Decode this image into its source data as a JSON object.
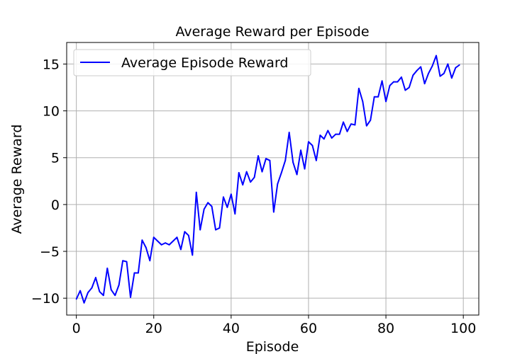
{
  "chart_data": {
    "type": "line",
    "title": "Average Reward per Episode",
    "xlabel": "Episode",
    "ylabel": "Average Reward",
    "xlim": [
      -2.5,
      104
    ],
    "ylim": [
      -11.8,
      17.3
    ],
    "x_ticks": [
      0,
      20,
      40,
      60,
      80,
      100
    ],
    "y_ticks": [
      -10,
      -5,
      0,
      5,
      10,
      15
    ],
    "x_tick_labels": [
      "0",
      "20",
      "40",
      "60",
      "80",
      "100"
    ],
    "y_tick_labels": [
      "−10",
      "−5",
      "0",
      "5",
      "10",
      "15"
    ],
    "grid": true,
    "legend_position": "top-left",
    "series": [
      {
        "name": "Average Episode Reward",
        "color": "#0000ff",
        "x": [
          0,
          1,
          2,
          3,
          4,
          5,
          6,
          7,
          8,
          9,
          10,
          11,
          12,
          13,
          14,
          15,
          16,
          17,
          18,
          19,
          20,
          21,
          22,
          23,
          24,
          25,
          26,
          27,
          28,
          29,
          30,
          31,
          32,
          33,
          34,
          35,
          36,
          37,
          38,
          39,
          40,
          41,
          42,
          43,
          44,
          45,
          46,
          47,
          48,
          49,
          50,
          51,
          52,
          53,
          54,
          55,
          56,
          57,
          58,
          59,
          60,
          61,
          62,
          63,
          64,
          65,
          66,
          67,
          68,
          69,
          70,
          71,
          72,
          73,
          74,
          75,
          76,
          77,
          78,
          79,
          80,
          81,
          82,
          83,
          84,
          85,
          86,
          87,
          88,
          89,
          90,
          91,
          92,
          93,
          94,
          95,
          96,
          97,
          98,
          99
        ],
        "values": [
          -10.1,
          -9.2,
          -10.5,
          -9.4,
          -8.9,
          -7.8,
          -9.3,
          -9.7,
          -6.8,
          -9.1,
          -9.7,
          -8.6,
          -6.0,
          -6.1,
          -9.9,
          -7.3,
          -7.3,
          -3.8,
          -4.6,
          -6.0,
          -3.5,
          -3.9,
          -4.3,
          -4.1,
          -4.3,
          -3.9,
          -3.5,
          -4.8,
          -2.9,
          -3.3,
          -5.4,
          1.3,
          -2.7,
          -0.5,
          0.2,
          -0.2,
          -2.7,
          -2.5,
          0.8,
          -0.3,
          1.1,
          -1.0,
          3.4,
          2.1,
          3.5,
          2.4,
          2.9,
          5.2,
          3.5,
          4.9,
          4.7,
          -0.8,
          2.2,
          3.4,
          4.7,
          7.7,
          4.5,
          3.2,
          5.8,
          3.8,
          6.7,
          6.3,
          4.7,
          7.4,
          7.0,
          7.9,
          7.1,
          7.5,
          7.5,
          8.8,
          7.8,
          8.6,
          8.5,
          12.4,
          11.0,
          8.4,
          9.0,
          11.5,
          11.5,
          13.2,
          11.0,
          12.7,
          13.1,
          13.1,
          13.6,
          12.2,
          12.5,
          13.8,
          14.3,
          14.7,
          12.9,
          14.0,
          14.8,
          15.9,
          13.7,
          14.0,
          15.0,
          13.5,
          14.6,
          14.9
        ]
      }
    ]
  }
}
